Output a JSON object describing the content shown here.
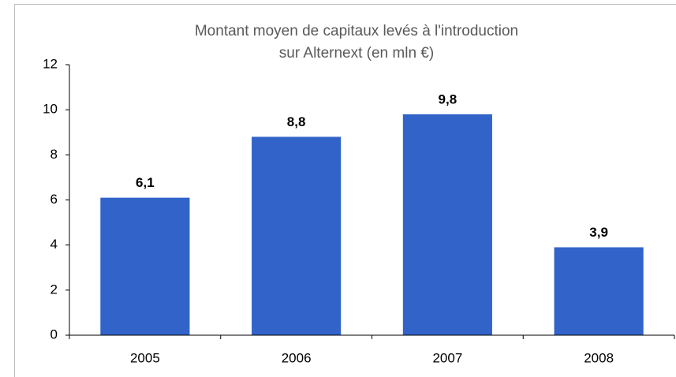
{
  "chart_data": {
    "type": "bar",
    "title": [
      "Montant moyen de capitaux levés à l'introduction",
      "sur Alternext (en mln €)"
    ],
    "categories": [
      "2005",
      "2006",
      "2007",
      "2008"
    ],
    "values": [
      6.1,
      8.8,
      9.8,
      3.9
    ],
    "value_labels": [
      "6,1",
      "8,8",
      "9,8",
      "3,9"
    ],
    "color": "#3163c9",
    "ylim": [
      0,
      12
    ],
    "yticks": [
      0,
      2,
      4,
      6,
      8,
      10,
      12
    ],
    "grid": false
  }
}
